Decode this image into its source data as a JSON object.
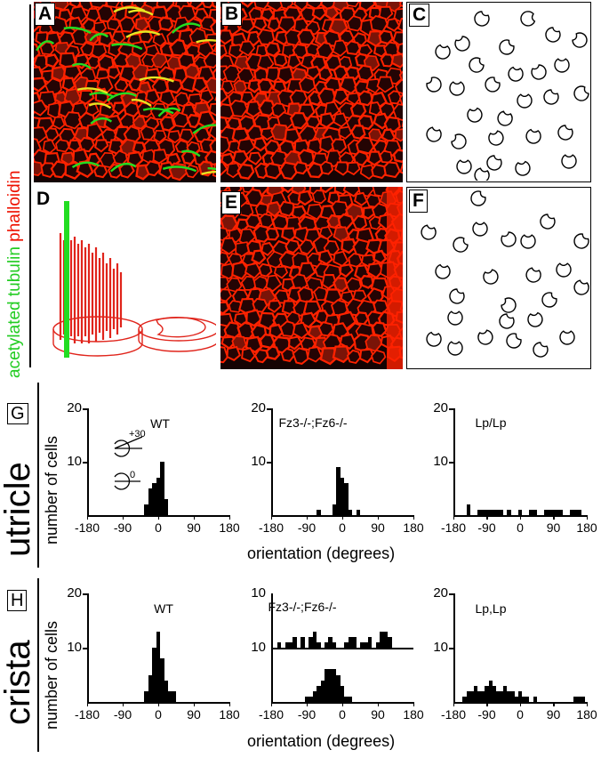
{
  "panel_labels": {
    "a": "A",
    "b": "B",
    "c": "C",
    "d": "D",
    "e": "E",
    "f": "F",
    "g": "G",
    "h": "H"
  },
  "stain_labels": {
    "tubulin": "acetylated tubulin",
    "phalloidin": "phalloidin"
  },
  "colors": {
    "tubulin": "#22dd22",
    "phalloidin": "#ff2200",
    "bars": "#000000",
    "diagram_red": "#e0241b"
  },
  "row_labels": {
    "utricle": "utricle",
    "crista": "crista"
  },
  "axis": {
    "ylabel": "number of cells",
    "xlabel": "orientation (degrees)",
    "xticks": [
      "-180",
      "-90",
      "0",
      "90",
      "180"
    ]
  },
  "inset": {
    "upper_angle": "+30",
    "lower_angle": "0"
  },
  "chart_data": [
    {
      "type": "bar",
      "panel": "G",
      "title": "WT",
      "ylim": [
        0,
        20
      ],
      "yticks": [
        "20",
        "10"
      ],
      "xlim": [
        -180,
        180
      ],
      "x": [
        -30,
        -20,
        -10,
        0,
        10,
        20
      ],
      "values": [
        2,
        5,
        6,
        7,
        10,
        3
      ]
    },
    {
      "type": "bar",
      "panel": "G",
      "title": "Fz3-/-;Fz6-/-",
      "ylim": [
        0,
        20
      ],
      "yticks": [
        "20",
        "10"
      ],
      "xlim": [
        -180,
        180
      ],
      "x": [
        -60,
        -20,
        -10,
        0,
        10,
        20,
        40
      ],
      "values": [
        1,
        2,
        9,
        7,
        6,
        1,
        1
      ]
    },
    {
      "type": "bar",
      "panel": "G",
      "title": "Lp/Lp",
      "ylim": [
        0,
        20
      ],
      "yticks": [
        "20",
        "10"
      ],
      "xlim": [
        -180,
        180
      ],
      "x": [
        -140,
        -110,
        -100,
        -90,
        -80,
        -70,
        -60,
        -50,
        -30,
        0,
        30,
        40,
        70,
        80,
        90,
        100,
        110,
        140,
        150,
        160
      ],
      "values": [
        2,
        1,
        1,
        1,
        1,
        1,
        1,
        1,
        1,
        1,
        1,
        1,
        1,
        1,
        1,
        1,
        1,
        1,
        1,
        1
      ]
    },
    {
      "type": "bar",
      "panel": "H",
      "title": "WT",
      "ylim": [
        0,
        20
      ],
      "yticks": [
        "20",
        "10"
      ],
      "xlim": [
        -180,
        180
      ],
      "x": [
        -30,
        -20,
        -10,
        0,
        10,
        20,
        30,
        40
      ],
      "values": [
        2,
        5,
        10,
        13,
        8,
        4,
        2,
        2
      ]
    },
    {
      "type": "bar",
      "panel": "H",
      "title": "Fz3-/-;Fz6-/-",
      "ylim_top": [
        0,
        10
      ],
      "ylim_bottom": [
        0,
        10
      ],
      "yticks": [
        "10",
        "10"
      ],
      "xlim": [
        -180,
        180
      ],
      "series": [
        {
          "x": [
            -160,
            -140,
            -130,
            -120,
            -100,
            -80,
            -70,
            -60,
            -40,
            -30,
            -20,
            10,
            20,
            30,
            50,
            60,
            70,
            90,
            100,
            110,
            120
          ],
          "values": [
            1,
            1,
            1,
            2,
            2,
            2,
            3,
            1,
            1,
            2,
            1,
            1,
            2,
            2,
            1,
            1,
            2,
            1,
            3,
            3,
            2
          ]
        },
        {
          "x": [
            -90,
            -80,
            -70,
            -60,
            -50,
            -40,
            -30,
            -20,
            -10,
            0,
            10,
            20
          ],
          "values": [
            1,
            1,
            2,
            3,
            4,
            6,
            6,
            6,
            5,
            3,
            1,
            1
          ]
        }
      ]
    },
    {
      "type": "bar",
      "panel": "H",
      "title": "Lp,Lp",
      "ylim": [
        0,
        20
      ],
      "yticks": [
        "20",
        "10"
      ],
      "xlim": [
        -180,
        180
      ],
      "x": [
        -150,
        -140,
        -130,
        -120,
        -110,
        -100,
        -90,
        -80,
        -70,
        -60,
        -50,
        -40,
        -30,
        -20,
        -10,
        0,
        10,
        20,
        40,
        150,
        160,
        170
      ],
      "values": [
        1,
        2,
        2,
        3,
        2,
        2,
        3,
        4,
        3,
        2,
        2,
        3,
        2,
        2,
        1,
        2,
        1,
        1,
        1,
        1,
        1,
        1
      ]
    }
  ]
}
